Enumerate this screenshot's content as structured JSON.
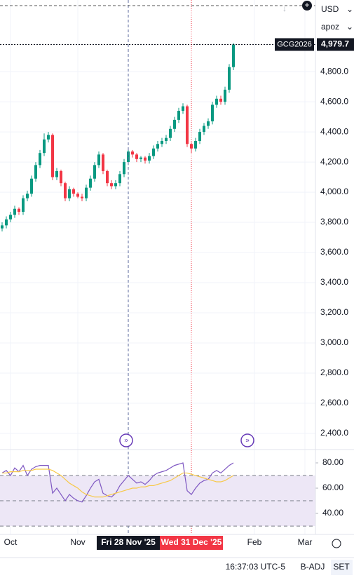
{
  "chart_data": [
    {
      "type": "candlestick",
      "symbol": "GCG2026",
      "last_price": {
        "value": 4979.7,
        "label": "4,979.7"
      },
      "categories": [
        null,
        null,
        "Oct",
        null,
        null,
        null,
        null,
        null,
        null,
        null,
        null,
        null,
        null,
        null,
        null,
        null,
        null,
        null,
        "Nov",
        null,
        null,
        null,
        null,
        null,
        null,
        null,
        null,
        null,
        null,
        null,
        "Fri 28 Nov '25",
        null,
        null,
        null,
        null,
        null,
        null,
        null,
        null,
        null,
        null,
        null,
        null,
        null,
        null,
        "Wed 31 Dec '25",
        null,
        null,
        null,
        null,
        null,
        null,
        null,
        null,
        null,
        null,
        null,
        null,
        null,
        null,
        "Feb",
        null,
        null,
        null,
        null,
        null,
        null,
        null,
        null,
        null,
        null,
        null,
        "Mar"
      ],
      "highlight_labels": [
        {
          "index": 30,
          "color": "#131722"
        },
        {
          "index": 45,
          "color": "#f23645"
        }
      ],
      "open": [
        3760,
        3780,
        3820,
        3850,
        3890,
        3870,
        3960,
        3990,
        4090,
        4180,
        4260,
        4350,
        4380,
        4100,
        4140,
        4060,
        3960,
        4020,
        3990,
        3970,
        3960,
        4030,
        4090,
        4180,
        4250,
        4140,
        4060,
        4040,
        4060,
        4120,
        4200,
        4270,
        4250,
        4220,
        4230,
        4210,
        4240,
        4290,
        4320,
        4340,
        4360,
        4420,
        4480,
        4540,
        4570,
        4320,
        4290,
        4340,
        4400,
        4440,
        4470,
        4580,
        4620,
        4600,
        4680,
        4830,
        null,
        null,
        null,
        null,
        null,
        null,
        null,
        null,
        null,
        null,
        null,
        null,
        null,
        null,
        null,
        null,
        null
      ],
      "high": [
        3800,
        3840,
        3870,
        3910,
        3900,
        3980,
        4010,
        4110,
        4200,
        4280,
        4390,
        4400,
        4390,
        4160,
        4150,
        4070,
        4040,
        4030,
        4000,
        3990,
        4050,
        4110,
        4200,
        4270,
        4260,
        4150,
        4080,
        4080,
        4140,
        4220,
        4290,
        4280,
        4260,
        4240,
        4240,
        4260,
        4310,
        4340,
        4360,
        4380,
        4440,
        4500,
        4560,
        4590,
        4580,
        4330,
        4360,
        4420,
        4460,
        4490,
        4600,
        4640,
        4640,
        4700,
        4850,
        4990,
        null,
        null,
        null,
        null,
        null,
        null,
        null,
        null,
        null,
        null,
        null,
        null,
        null,
        null,
        null,
        null,
        null
      ],
      "low": [
        3740,
        3760,
        3800,
        3830,
        3850,
        3850,
        3940,
        3970,
        4070,
        4160,
        4240,
        4330,
        4080,
        4080,
        4040,
        3940,
        3940,
        3970,
        3960,
        3940,
        3940,
        4010,
        4070,
        4160,
        4120,
        4040,
        4020,
        4020,
        4040,
        4100,
        4180,
        4230,
        4200,
        4200,
        4190,
        4190,
        4220,
        4270,
        4300,
        4320,
        4340,
        4400,
        4460,
        4520,
        4300,
        4260,
        4270,
        4320,
        4380,
        4420,
        4450,
        4560,
        4580,
        4580,
        4660,
        4810,
        null,
        null,
        null,
        null,
        null,
        null,
        null,
        null,
        null,
        null,
        null,
        null,
        null,
        null,
        null,
        null,
        null
      ],
      "close": [
        3780,
        3820,
        3850,
        3890,
        3870,
        3960,
        3990,
        4090,
        4180,
        4260,
        4350,
        4380,
        4100,
        4140,
        4060,
        3960,
        4020,
        3990,
        3970,
        3960,
        4030,
        4090,
        4180,
        4250,
        4140,
        4060,
        4040,
        4060,
        4120,
        4200,
        4270,
        4250,
        4220,
        4230,
        4210,
        4240,
        4290,
        4320,
        4340,
        4360,
        4420,
        4480,
        4540,
        4570,
        4320,
        4290,
        4340,
        4400,
        4440,
        4470,
        4580,
        4620,
        4600,
        4680,
        4830,
        4979.7,
        null,
        null,
        null,
        null,
        null,
        null,
        null,
        null,
        null,
        null,
        null,
        null,
        null,
        null,
        null,
        null,
        null
      ],
      "up_color": "#089981",
      "down_color": "#f23645",
      "ylim": [
        2293,
        5275
      ],
      "yticks": [
        {
          "value": 2400,
          "label": "2,400.0"
        },
        {
          "value": 2600,
          "label": "2,600.0"
        },
        {
          "value": 2800,
          "label": "2,800.0"
        },
        {
          "value": 3000,
          "label": "3,000.0"
        },
        {
          "value": 3200,
          "label": "3,200.0"
        },
        {
          "value": 3400,
          "label": "3,400.0"
        },
        {
          "value": 3600,
          "label": "3,600.0"
        },
        {
          "value": 3800,
          "label": "3,800.0"
        },
        {
          "value": 4000,
          "label": "4,000.0"
        },
        {
          "value": 4200,
          "label": "4,200.0"
        },
        {
          "value": 4400,
          "label": "4,400.0"
        },
        {
          "value": 4600,
          "label": "4,600.0"
        },
        {
          "value": 4800,
          "label": "4,800.0"
        }
      ],
      "grid": true
    },
    {
      "type": "line",
      "series": [
        {
          "color": "#7e57c2",
          "values": [
            72,
            74,
            70,
            76,
            73,
            78,
            70,
            75,
            77,
            78,
            78,
            78,
            56,
            60,
            55,
            50,
            55,
            52,
            50,
            49,
            54,
            60,
            65,
            67,
            56,
            54,
            53,
            56,
            62,
            66,
            70,
            67,
            64,
            65,
            63,
            66,
            70,
            72,
            73,
            74,
            76,
            78,
            79,
            80,
            58,
            55,
            60,
            64,
            66,
            67,
            72,
            74,
            72,
            75,
            78,
            80,
            null,
            null,
            null,
            null,
            null,
            null,
            null,
            null,
            null,
            null,
            null,
            null,
            null,
            null,
            null,
            null,
            null
          ]
        },
        {
          "color": "#f7c948",
          "values": [
            72,
            72,
            73,
            73,
            73,
            74,
            74,
            74,
            75,
            75,
            75,
            75,
            74,
            72,
            70,
            67,
            64,
            62,
            60,
            57,
            55,
            54,
            53,
            53,
            53,
            54,
            55,
            56,
            57,
            58,
            59,
            60,
            60,
            61,
            61,
            62,
            62,
            63,
            64,
            65,
            66,
            68,
            70,
            72,
            72,
            71,
            70,
            69,
            68,
            67,
            66,
            65,
            65,
            66,
            68,
            70,
            null,
            null,
            null,
            null,
            null,
            null,
            null,
            null,
            null,
            null,
            null,
            null,
            null,
            null,
            null,
            null,
            null
          ]
        }
      ],
      "band": [
        30,
        70
      ],
      "band_color": "#ede7f6",
      "midline": 50,
      "ylim": [
        25.6,
        90
      ],
      "yticks": [
        {
          "value": 40,
          "label": "40.00"
        },
        {
          "value": 60,
          "label": "60.00"
        },
        {
          "value": 80,
          "label": "80.00"
        }
      ]
    }
  ],
  "toolbar": {
    "currency": "USD",
    "adjustment": "apoz",
    "time": "16:37:03 UTC-5",
    "badj": "B-ADJ",
    "session": "SET"
  }
}
